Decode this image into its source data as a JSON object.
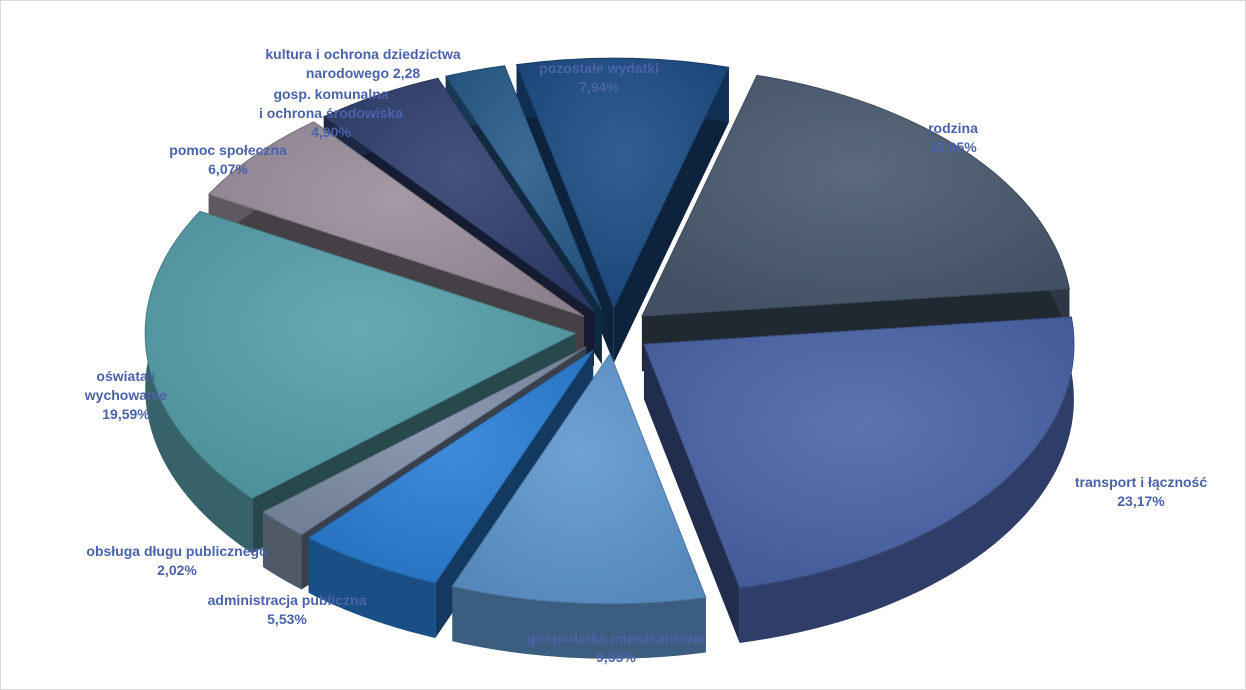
{
  "chart_data": {
    "type": "pie",
    "title": "",
    "legend": "none",
    "style": "3d-exploded",
    "slices": [
      {
        "label": [
          "rodzina"
        ],
        "value_text": "18,95%",
        "value": 18.95,
        "color": "#485a6e"
      },
      {
        "label": [
          "transport i łączność"
        ],
        "value_text": "23,17%",
        "value": 23.17,
        "color": "#4a64a8"
      },
      {
        "label": [
          "gospodarka mieszkaniowa"
        ],
        "value_text": "9,55%",
        "value": 9.55,
        "color": "#5f98cf"
      },
      {
        "label": [
          "administracja publiczna"
        ],
        "value_text": "5,53%",
        "value": 5.53,
        "color": "#2a7fd6"
      },
      {
        "label": [
          "obsługa długu publicznego"
        ],
        "value_text": "2,02%",
        "value": 2.02,
        "color": "#7f8fa8"
      },
      {
        "label": [
          "oświata i",
          "wychowanie"
        ],
        "value_text": "19,59%",
        "value": 19.59,
        "color": "#56a0aa"
      },
      {
        "label": [
          "pomoc społeczna"
        ],
        "value_text": "6,07%",
        "value": 6.07,
        "color": "#9a8e9c"
      },
      {
        "label": [
          "gosp. komunalna",
          "i ochrona środowiska"
        ],
        "value_text": "4,90%",
        "value": 4.9,
        "color": "#2f3f6e"
      },
      {
        "label": [
          "kultura  i ochrona dziedzictwa",
          "narodowego 2,28"
        ],
        "value_text": "",
        "value": 2.28,
        "color": "#265a8a"
      },
      {
        "label": [
          "pozostałe wydatki"
        ],
        "value_text": "7,94%",
        "value": 7.94,
        "color": "#1c4c85"
      }
    ]
  }
}
